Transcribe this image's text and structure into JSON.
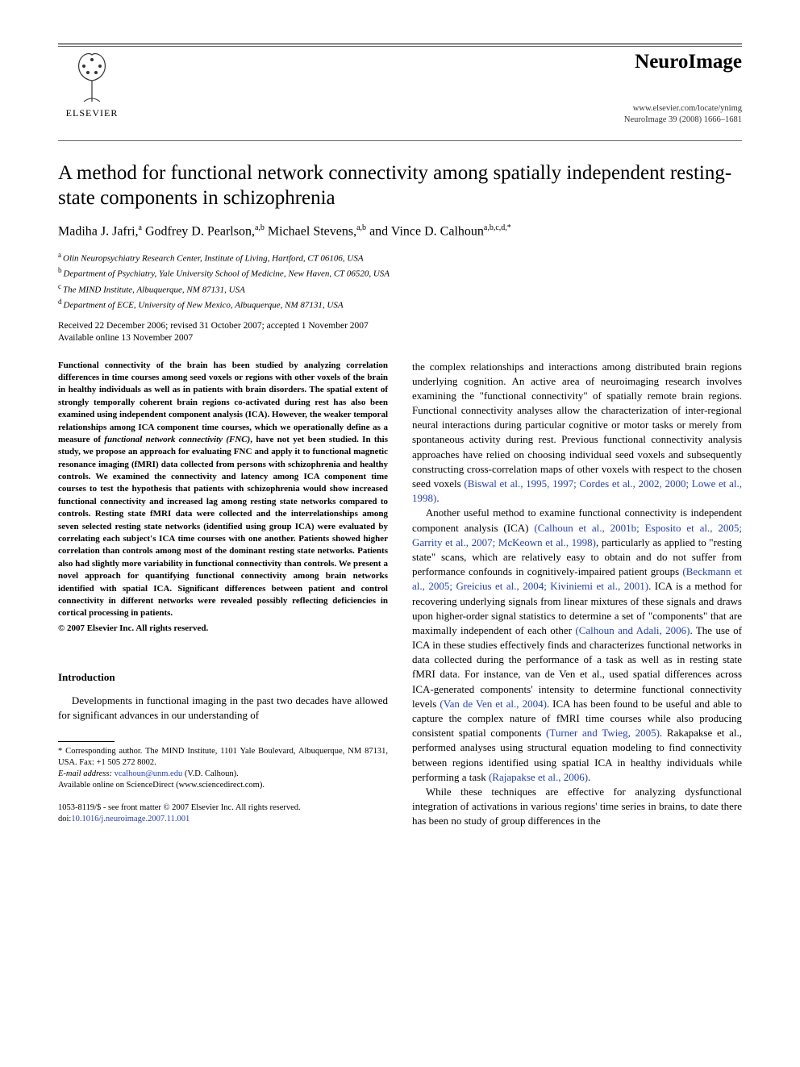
{
  "header": {
    "publisher": "ELSEVIER",
    "journal_name": "NeuroImage",
    "journal_url": "www.elsevier.com/locate/ynimg",
    "journal_citation": "NeuroImage 39 (2008) 1666–1681"
  },
  "title": "A method for functional network connectivity among spatially independent resting-state components in schizophrenia",
  "authors_html": "Madiha J. Jafri,<sup>a</sup> Godfrey D. Pearlson,<sup>a,b</sup> Michael Stevens,<sup>a,b</sup> and Vince D. Calhoun<sup>a,b,c,d,*</sup>",
  "affiliations": [
    {
      "sup": "a",
      "text": "Olin Neuropsychiatry Research Center, Institute of Living, Hartford, CT 06106, USA"
    },
    {
      "sup": "b",
      "text": "Department of Psychiatry, Yale University School of Medicine, New Haven, CT 06520, USA"
    },
    {
      "sup": "c",
      "text": "The MIND Institute, Albuquerque, NM 87131, USA"
    },
    {
      "sup": "d",
      "text": "Department of ECE, University of New Mexico, Albuquerque, NM 87131, USA"
    }
  ],
  "dates_line1": "Received 22 December 2006; revised 31 October 2007; accepted 1 November 2007",
  "dates_line2": "Available online 13 November 2007",
  "abstract": "Functional connectivity of the brain has been studied by analyzing correlation differences in time courses among seed voxels or regions with other voxels of the brain in healthy individuals as well as in patients with brain disorders. The spatial extent of strongly temporally coherent brain regions co-activated during rest has also been examined using independent component analysis (ICA). However, the weaker temporal relationships among ICA component time courses, which we operationally define as a measure of functional network connectivity (FNC), have not yet been studied. In this study, we propose an approach for evaluating FNC and apply it to functional magnetic resonance imaging (fMRI) data collected from persons with schizophrenia and healthy controls. We examined the connectivity and latency among ICA component time courses to test the hypothesis that patients with schizophrenia would show increased functional connectivity and increased lag among resting state networks compared to controls. Resting state fMRI data were collected and the interrelationships among seven selected resting state networks (identified using group ICA) were evaluated by correlating each subject's ICA time courses with one another. Patients showed higher correlation than controls among most of the dominant resting state networks. Patients also had slightly more variability in functional connectivity than controls. We present a novel approach for quantifying functional connectivity among brain networks identified with spatial ICA. Significant differences between patient and control connectivity in different networks were revealed possibly reflecting deficiencies in cortical processing in patients.",
  "copyright": "© 2007 Elsevier Inc. All rights reserved.",
  "intro_heading": "Introduction",
  "intro_para_1": "Developments in functional imaging in the past two decades have allowed for significant advances in our understanding of",
  "footnote_corresponding": "* Corresponding author. The MIND Institute, 1101 Yale Boulevard, Albuquerque, NM 87131, USA. Fax: +1 505 272 8002.",
  "footnote_email_label": "E-mail address:",
  "footnote_email": "vcalhoun@unm.edu",
  "footnote_email_attrib": "(V.D. Calhoun).",
  "footnote_sd": "Available online on ScienceDirect (www.sciencedirect.com).",
  "col2_para_1": "the complex relationships and interactions among distributed brain regions underlying cognition. An active area of neuroimaging research involves examining the \"functional connectivity\" of spatially remote brain regions. Functional connectivity analyses allow the characterization of inter-regional neural interactions during particular cognitive or motor tasks or merely from spontaneous activity during rest. Previous functional connectivity analysis approaches have relied on choosing individual seed voxels and subsequently constructing cross-correlation maps of other voxels with respect to the chosen seed voxels ",
  "col2_cite_1": "(Biswal et al., 1995, 1997; Cordes et al., 2002, 2000; Lowe et al., 1998)",
  "col2_para_2a": "Another useful method to examine functional connectivity is independent component analysis (ICA) ",
  "col2_cite_2": "(Calhoun et al., 2001b; Esposito et al., 2005; Garrity et al., 2007; McKeown et al., 1998)",
  "col2_para_2b": ", particularly as applied to \"resting state\" scans, which are relatively easy to obtain and do not suffer from performance confounds in cognitively-impaired patient groups ",
  "col2_cite_3": "(Beckmann et al., 2005; Greicius et al., 2004; Kiviniemi et al., 2001)",
  "col2_para_2c": ". ICA is a method for recovering underlying signals from linear mixtures of these signals and draws upon higher-order signal statistics to determine a set of \"components\" that are maximally independent of each other ",
  "col2_cite_4": "(Calhoun and Adali, 2006)",
  "col2_para_2d": ". The use of ICA in these studies effectively finds and characterizes functional networks in data collected during the performance of a task as well as in resting state fMRI data. For instance, van de Ven et al., used spatial differences across ICA-generated components' intensity to determine functional connectivity levels ",
  "col2_cite_5": "(Van de Ven et al., 2004)",
  "col2_para_2e": ". ICA has been found to be useful and able to capture the complex nature of fMRI time courses while also producing consistent spatial components ",
  "col2_cite_6": "(Turner and Twieg, 2005)",
  "col2_para_2f": ". Rakapakse et al., performed analyses using structural equation modeling to find connectivity between regions identified using spatial ICA in healthy individuals while performing a task ",
  "col2_cite_7": "(Rajapakse et al., 2006)",
  "col2_para_3": "While these techniques are effective for analyzing dysfunctional integration of activations in various regions' time series in brains, to date there has been no study of group differences in the",
  "bottom_line": "1053-8119/$ - see front matter © 2007 Elsevier Inc. All rights reserved.",
  "doi_label": "doi:",
  "doi": "10.1016/j.neuroimage.2007.11.001",
  "colors": {
    "link": "#2040c0",
    "text": "#000000",
    "background": "#ffffff"
  }
}
